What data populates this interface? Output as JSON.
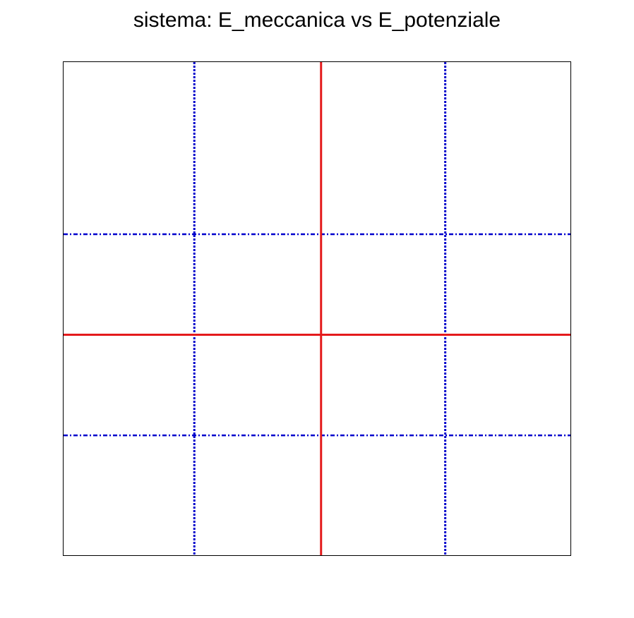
{
  "chart_data": {
    "type": "scatter",
    "title": "sistema: E_meccanica vs E_potenziale",
    "xlabel": "",
    "ylabel": "",
    "xlim": [
      0,
      1
    ],
    "ylim": [
      0,
      1
    ],
    "grid": false,
    "reference_lines": {
      "solid": {
        "color": "#e41a1c",
        "vertical_x": [
          0.508
        ],
        "horizontal_y": [
          0.447
        ]
      },
      "dotted": {
        "color": "#0000cc",
        "vertical_x": [
          0.258,
          0.753
        ]
      },
      "dash_dot": {
        "color": "#0000cc",
        "horizontal_y": [
          0.651,
          0.243
        ]
      }
    }
  }
}
